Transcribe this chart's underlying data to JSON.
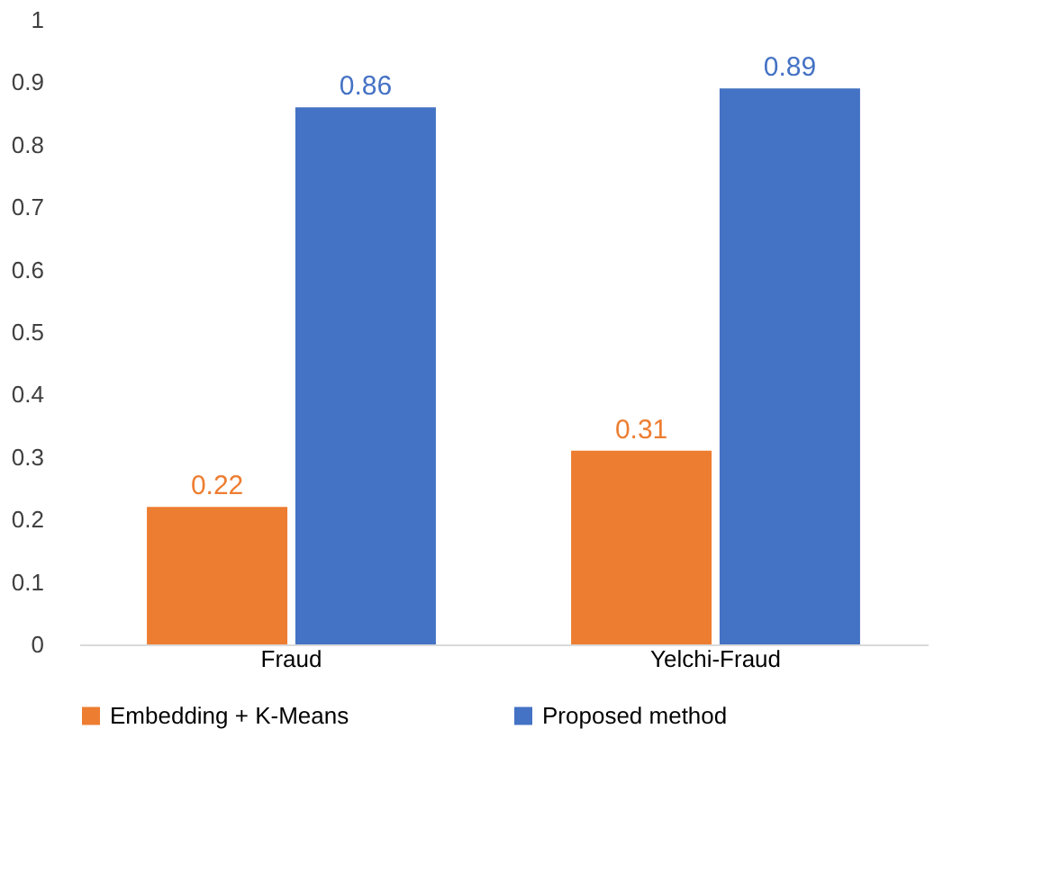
{
  "chart_data": {
    "type": "bar",
    "categories": [
      "Fraud",
      "Yelchi-Fraud"
    ],
    "series": [
      {
        "name": "Embedding + K-Means",
        "color": "#ed7d31",
        "values": [
          0.22,
          0.31
        ]
      },
      {
        "name": "Proposed method",
        "color": "#4472c4",
        "values": [
          0.86,
          0.89
        ]
      }
    ],
    "ylim": [
      0,
      1
    ],
    "yticks": [
      0,
      0.1,
      0.2,
      0.3,
      0.4,
      0.5,
      0.6,
      0.7,
      0.8,
      0.9,
      1
    ],
    "grid": false,
    "legend": "bottom",
    "data_labels": true
  }
}
